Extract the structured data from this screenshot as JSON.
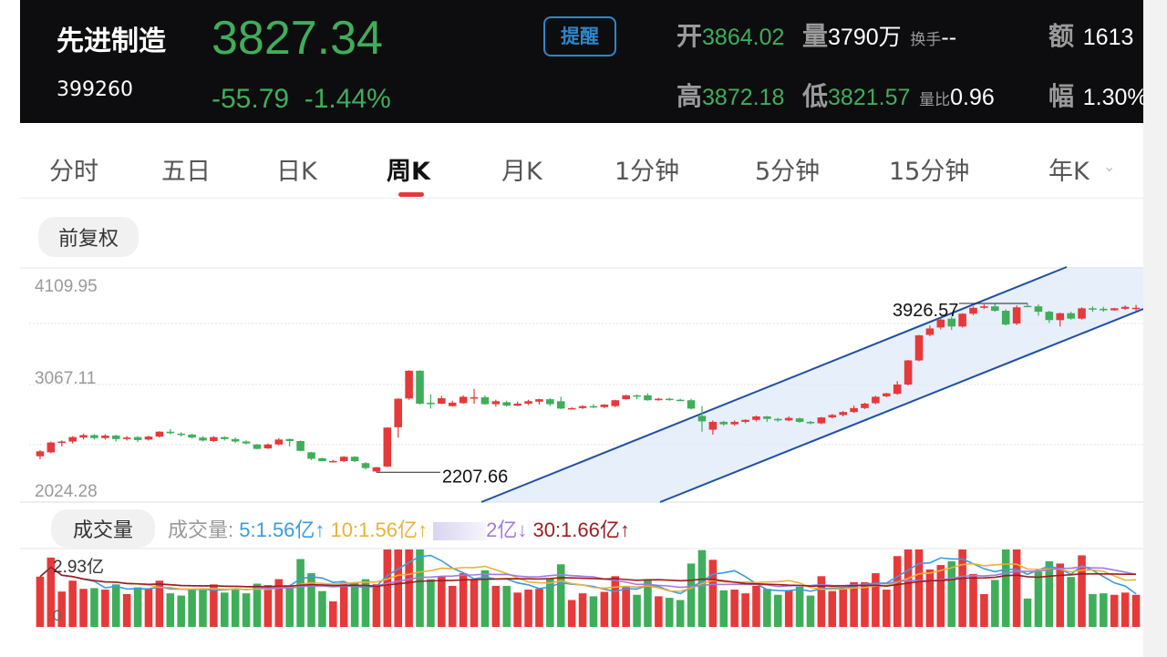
{
  "stock": {
    "name": "先进制造",
    "code": "399260",
    "price": "3827.34",
    "change": "-55.79",
    "change_pct": "-1.44%",
    "remind_label": "提醒"
  },
  "stats": {
    "open_label": "开",
    "open": "3864.02",
    "volume_label": "量",
    "volume": "3790万",
    "turnover_label": "换手",
    "turnover": "--",
    "amount_label": "额",
    "amount": "1613",
    "high_label": "高",
    "high": "3872.18",
    "low_label": "低",
    "low": "3821.57",
    "vol_ratio_label": "量比",
    "vol_ratio": "0.96",
    "amplitude_label": "幅",
    "amplitude": "1.30%"
  },
  "tabs": [
    {
      "label": "分时"
    },
    {
      "label": "五日"
    },
    {
      "label": "日K"
    },
    {
      "label": "周K",
      "active": true
    },
    {
      "label": "月K"
    },
    {
      "label": "1分钟"
    },
    {
      "label": "5分钟"
    },
    {
      "label": "15分钟"
    },
    {
      "label": "年K"
    }
  ],
  "adjust_label": "前复权",
  "price_axis": {
    "top": "4109.95",
    "mid": "3067.11",
    "bottom": "2024.28"
  },
  "annotations": {
    "high": "3926.57",
    "low": "2207.66"
  },
  "volume_panel": {
    "label": "成交量",
    "legend_prefix": "成交量:",
    "ma5": "5:1.56亿",
    "ma10": "10:1.56亿",
    "ma20_partial": "2亿",
    "ma30": "30:1.66亿",
    "axis_top": "2.93亿",
    "axis_zero": "0"
  },
  "colors": {
    "up": "#e6393a",
    "down": "#3fae5a",
    "channel": "#1f4fa3",
    "ma5": "#3a9be0",
    "ma10": "#e8b23a",
    "ma20": "#a07be0",
    "ma30": "#9b1d1d"
  },
  "chart_data": {
    "type": "candlestick",
    "ylim": [
      2024.28,
      4109.95
    ],
    "candles": [
      [
        2370,
        2420,
        2340,
        2432
      ],
      [
        2410,
        2510,
        2400,
        2520
      ],
      [
        2505,
        2520,
        2470,
        2532
      ],
      [
        2520,
        2565,
        2500,
        2575
      ],
      [
        2560,
        2585,
        2540,
        2600
      ],
      [
        2585,
        2555,
        2540,
        2595
      ],
      [
        2555,
        2580,
        2540,
        2595
      ],
      [
        2580,
        2545,
        2520,
        2590
      ],
      [
        2545,
        2560,
        2530,
        2575
      ],
      [
        2565,
        2535,
        2515,
        2575
      ],
      [
        2540,
        2570,
        2530,
        2580
      ],
      [
        2570,
        2620,
        2560,
        2625
      ],
      [
        2620,
        2605,
        2595,
        2645
      ],
      [
        2600,
        2590,
        2570,
        2615
      ],
      [
        2590,
        2560,
        2550,
        2600
      ],
      [
        2560,
        2530,
        2520,
        2575
      ],
      [
        2525,
        2565,
        2515,
        2575
      ],
      [
        2565,
        2545,
        2530,
        2575
      ],
      [
        2545,
        2520,
        2505,
        2560
      ],
      [
        2520,
        2500,
        2490,
        2530
      ],
      [
        2490,
        2445,
        2440,
        2495
      ],
      [
        2450,
        2490,
        2445,
        2500
      ],
      [
        2490,
        2540,
        2480,
        2555
      ],
      [
        2545,
        2525,
        2470,
        2550
      ],
      [
        2525,
        2425,
        2420,
        2530
      ],
      [
        2410,
        2345,
        2330,
        2415
      ],
      [
        2350,
        2320,
        2320,
        2355
      ],
      [
        2322,
        2322,
        2308,
        2334
      ],
      [
        2320,
        2365,
        2310,
        2372
      ],
      [
        2365,
        2320,
        2310,
        2370
      ],
      [
        2300,
        2250,
        2235,
        2310
      ],
      [
        2215,
        2258,
        2207,
        2262
      ],
      [
        2265,
        2662,
        2260,
        2665
      ],
      [
        2665,
        2955,
        2560,
        2960
      ],
      [
        2958,
        3240,
        2945,
        3245
      ],
      [
        3240,
        2905,
        2895,
        3245
      ],
      [
        2915,
        2900,
        2855,
        3000
      ],
      [
        2905,
        2960,
        2900,
        2985
      ],
      [
        2880,
        2915,
        2875,
        2935
      ],
      [
        2910,
        2975,
        2905,
        2990
      ],
      [
        2960,
        2970,
        2905,
        3055
      ],
      [
        2970,
        2900,
        2895,
        2990
      ],
      [
        2900,
        2930,
        2875,
        2945
      ],
      [
        2920,
        2885,
        2875,
        2935
      ],
      [
        2885,
        2905,
        2880,
        2925
      ],
      [
        2905,
        2930,
        2890,
        2945
      ],
      [
        2925,
        2950,
        2895,
        2955
      ],
      [
        2950,
        2900,
        2880,
        2960
      ],
      [
        2930,
        2855,
        2850,
        2975
      ],
      [
        2855,
        2860,
        2845,
        2870
      ],
      [
        2860,
        2880,
        2850,
        2890
      ],
      [
        2880,
        2870,
        2860,
        2900
      ],
      [
        2870,
        2895,
        2860,
        2900
      ],
      [
        2880,
        2940,
        2870,
        2945
      ],
      [
        2950,
        2990,
        2945,
        2995
      ],
      [
        2990,
        2980,
        2950,
        3000
      ],
      [
        2990,
        2940,
        2935,
        3010
      ],
      [
        2940,
        2955,
        2935,
        2965
      ],
      [
        2955,
        2945,
        2935,
        2965
      ],
      [
        2945,
        2940,
        2930,
        2955
      ],
      [
        2940,
        2855,
        2845,
        2955
      ],
      [
        2780,
        2725,
        2620,
        2880
      ],
      [
        2640,
        2720,
        2590,
        2735
      ],
      [
        2720,
        2695,
        2680,
        2730
      ],
      [
        2695,
        2720,
        2680,
        2735
      ],
      [
        2720,
        2740,
        2705,
        2745
      ],
      [
        2740,
        2775,
        2725,
        2785
      ],
      [
        2775,
        2750,
        2720,
        2780
      ],
      [
        2750,
        2735,
        2720,
        2760
      ],
      [
        2735,
        2760,
        2725,
        2775
      ],
      [
        2755,
        2720,
        2710,
        2765
      ],
      [
        2720,
        2705,
        2695,
        2730
      ],
      [
        2705,
        2765,
        2695,
        2770
      ],
      [
        2765,
        2790,
        2755,
        2800
      ],
      [
        2790,
        2820,
        2775,
        2830
      ],
      [
        2820,
        2860,
        2810,
        2885
      ],
      [
        2860,
        2905,
        2850,
        2915
      ],
      [
        2910,
        2975,
        2900,
        2985
      ],
      [
        2980,
        3010,
        2970,
        3015
      ],
      [
        3005,
        3100,
        2995,
        3135
      ],
      [
        3100,
        3345,
        3090,
        3350
      ],
      [
        3345,
        3600,
        3335,
        3605
      ],
      [
        3605,
        3670,
        3590,
        3700
      ],
      [
        3680,
        3760,
        3660,
        3770
      ],
      [
        3770,
        3690,
        3655,
        3790
      ],
      [
        3690,
        3820,
        3680,
        3825
      ],
      [
        3820,
        3880,
        3805,
        3895
      ],
      [
        3880,
        3895,
        3870,
        3915
      ],
      [
        3895,
        3850,
        3840,
        3920
      ],
      [
        3850,
        3710,
        3700,
        3865
      ],
      [
        3720,
        3885,
        3705,
        3905
      ],
      [
        3900,
        3895,
        3890,
        3925
      ],
      [
        3895,
        3840,
        3800,
        3915
      ],
      [
        3840,
        3755,
        3725,
        3850
      ],
      [
        3755,
        3825,
        3690,
        3830
      ],
      [
        3825,
        3770,
        3760,
        3840
      ],
      [
        3770,
        3875,
        3760,
        3885
      ],
      [
        3875,
        3865,
        3840,
        3895
      ],
      [
        3870,
        3855,
        3840,
        3890
      ],
      [
        3855,
        3875,
        3850,
        3880
      ],
      [
        3870,
        3890,
        3860,
        3905
      ],
      [
        3875,
        3880,
        3850,
        3910
      ]
    ],
    "volume_up_ratio": [
      0.33
    ],
    "channel": {
      "upper": [
        [
          2720,
          2200
        ],
        [
          3940,
          4109.95
        ]
      ],
      "lower": [
        [
          2890,
          2200
        ],
        [
          4010,
          3780
        ]
      ]
    }
  }
}
